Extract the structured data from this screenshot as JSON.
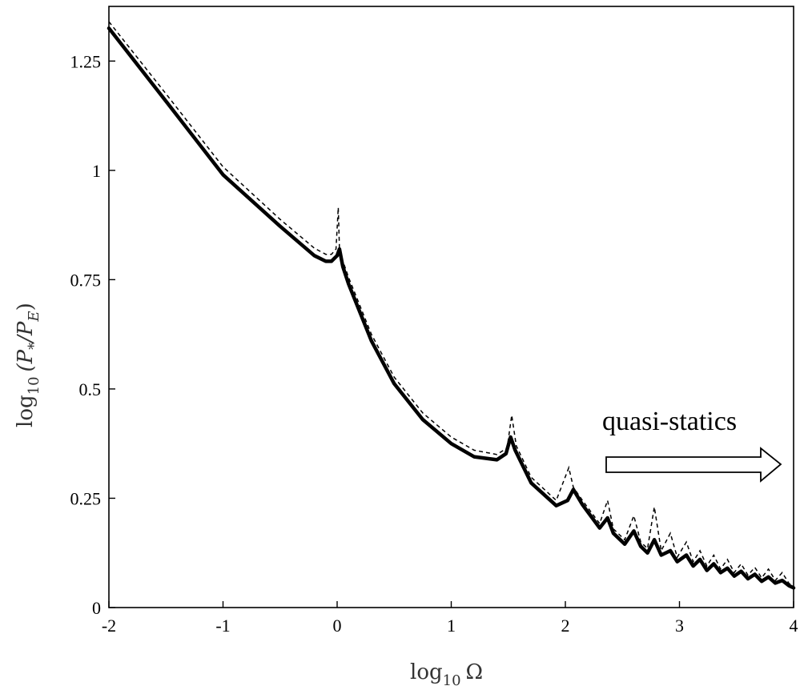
{
  "chart_data": {
    "type": "line",
    "xlabel_base": "log",
    "xlabel_sub": "10",
    "xlabel_var": "Ω",
    "ylabel_base": "log",
    "ylabel_sub": "10",
    "ylabel_var": "(P",
    "ylabel_var_sub1": "*",
    "ylabel_mid": "/P",
    "ylabel_var_sub2": "E",
    "ylabel_close": ")",
    "xlim": [
      -2,
      4
    ],
    "ylim": [
      0,
      1.375
    ],
    "x_ticks": [
      -2,
      -1,
      0,
      1,
      2,
      3,
      4
    ],
    "x_tick_labels": [
      "-2",
      "-1",
      "0",
      "1",
      "2",
      "3",
      "4"
    ],
    "y_ticks": [
      0,
      0.25,
      0.5,
      0.75,
      1,
      1.25
    ],
    "y_tick_labels": [
      "0",
      "0.25",
      "0.5",
      "0.75",
      "1",
      "1.25"
    ],
    "grid": false,
    "annotation": "quasi-statics",
    "series": [
      {
        "style": "solid",
        "x": [
          -2,
          -1.5,
          -1,
          -0.5,
          -0.2,
          -0.1,
          -0.05,
          0,
          0.02,
          0.05,
          0.1,
          0.3,
          0.5,
          0.75,
          1,
          1.2,
          1.4,
          1.48,
          1.52,
          1.56,
          1.7,
          1.92,
          2.02,
          2.07,
          2.15,
          2.3,
          2.37,
          2.42,
          2.52,
          2.6,
          2.66,
          2.72,
          2.78,
          2.84,
          2.92,
          2.98,
          3.06,
          3.12,
          3.18,
          3.24,
          3.3,
          3.36,
          3.42,
          3.48,
          3.54,
          3.6,
          3.66,
          3.72,
          3.78,
          3.84,
          3.9,
          3.96,
          4
        ],
        "y": [
          1.325,
          1.158,
          0.99,
          0.872,
          0.805,
          0.792,
          0.792,
          0.805,
          0.82,
          0.78,
          0.74,
          0.61,
          0.512,
          0.43,
          0.375,
          0.345,
          0.338,
          0.352,
          0.39,
          0.36,
          0.285,
          0.233,
          0.245,
          0.27,
          0.235,
          0.182,
          0.205,
          0.17,
          0.145,
          0.175,
          0.14,
          0.125,
          0.155,
          0.12,
          0.13,
          0.105,
          0.12,
          0.095,
          0.11,
          0.085,
          0.1,
          0.08,
          0.09,
          0.072,
          0.083,
          0.066,
          0.076,
          0.06,
          0.07,
          0.056,
          0.062,
          0.05,
          0.045
        ]
      },
      {
        "style": "dashed",
        "x": [
          -2,
          -1.5,
          -1,
          -0.5,
          -0.2,
          -0.1,
          -0.05,
          -0.01,
          0.01,
          0.02,
          0.03,
          0.06,
          0.1,
          0.3,
          0.5,
          0.75,
          1,
          1.2,
          1.4,
          1.49,
          1.53,
          1.57,
          1.7,
          1.92,
          2.03,
          2.07,
          2.15,
          2.3,
          2.37,
          2.42,
          2.52,
          2.6,
          2.66,
          2.72,
          2.78,
          2.84,
          2.92,
          2.98,
          3.06,
          3.12,
          3.18,
          3.24,
          3.3,
          3.36,
          3.42,
          3.48,
          3.54,
          3.6,
          3.66,
          3.72,
          3.78,
          3.84,
          3.9,
          3.96,
          4
        ],
        "y": [
          1.34,
          1.175,
          1.008,
          0.888,
          0.822,
          0.808,
          0.808,
          0.82,
          0.915,
          0.82,
          0.8,
          0.785,
          0.755,
          0.625,
          0.527,
          0.445,
          0.39,
          0.36,
          0.35,
          0.365,
          0.44,
          0.37,
          0.298,
          0.245,
          0.32,
          0.275,
          0.245,
          0.192,
          0.245,
          0.18,
          0.155,
          0.21,
          0.15,
          0.135,
          0.23,
          0.13,
          0.17,
          0.115,
          0.15,
          0.105,
          0.13,
          0.095,
          0.12,
          0.088,
          0.11,
          0.08,
          0.1,
          0.074,
          0.092,
          0.068,
          0.088,
          0.062,
          0.08,
          0.055,
          0.05
        ]
      }
    ]
  }
}
